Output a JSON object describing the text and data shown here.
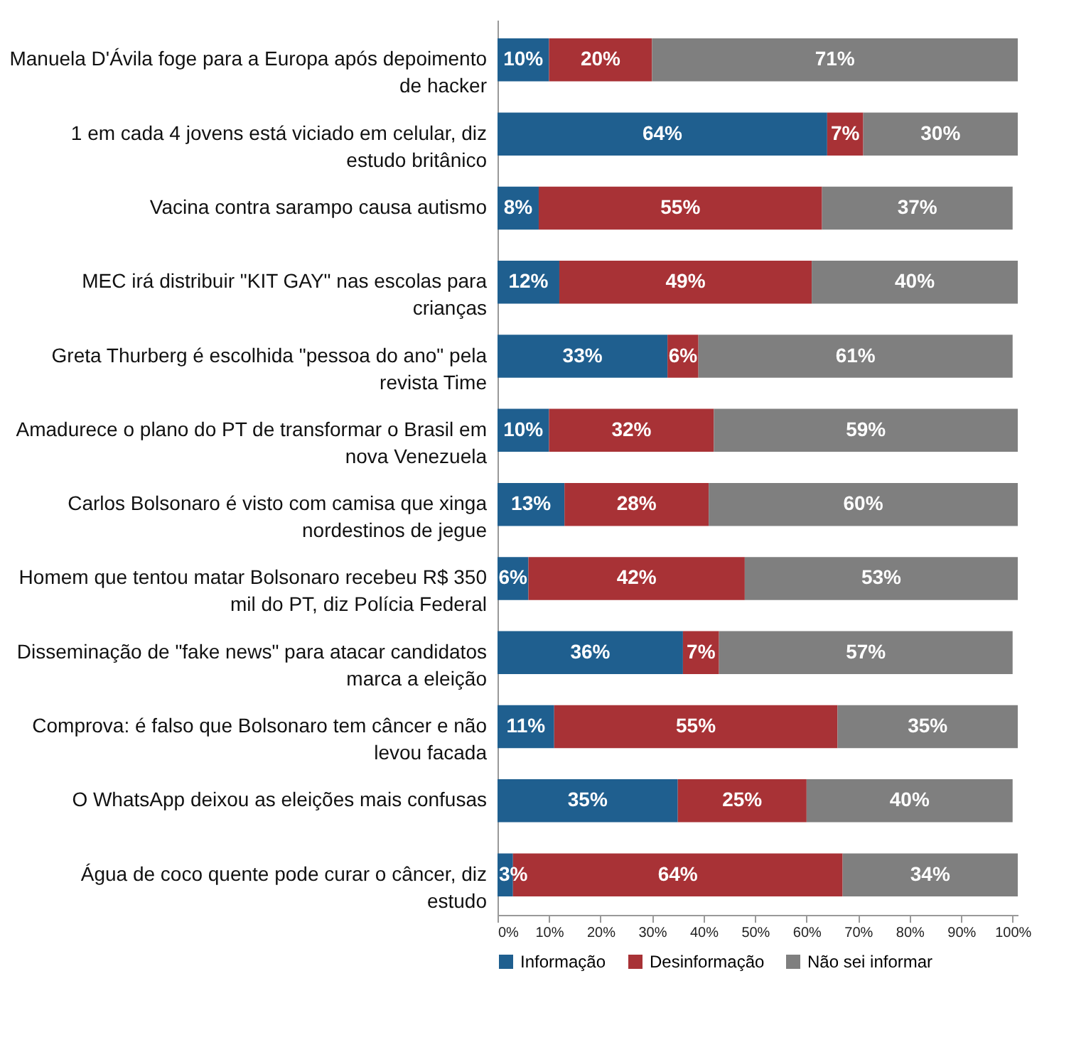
{
  "chart_data": {
    "type": "bar",
    "orientation": "horizontal",
    "stacked": true,
    "categories": [
      "Manuela D'Ávila foge para a Europa após depoimento de hacker",
      "1 em cada 4 jovens está viciado em celular, diz estudo britânico",
      "Vacina contra sarampo causa autismo",
      "MEC irá distribuir \"KIT GAY\" nas escolas para crianças",
      "Greta Thurberg é escolhida \"pessoa do ano\" pela revista Time",
      "Amadurece o plano do PT de transformar o Brasil em nova Venezuela",
      "Carlos Bolsonaro é visto com camisa que xinga nordestinos de jegue",
      "Homem que tentou matar Bolsonaro recebeu R$ 350 mil do PT, diz Polícia Federal",
      "Disseminação de \"fake news\" para atacar candidatos marca a eleição",
      "Comprova: é falso que Bolsonaro tem câncer e não levou facada",
      "O WhatsApp deixou as eleições mais confusas",
      "Água de coco quente pode curar o câncer, diz estudo"
    ],
    "series": [
      {
        "name": "Informação",
        "color": "#1f5f8f",
        "values": [
          10,
          64,
          8,
          12,
          33,
          10,
          13,
          6,
          36,
          11,
          35,
          3
        ],
        "value_labels": [
          "10%",
          "64%",
          "8%",
          "12%",
          "33%",
          "10%",
          "13%",
          "6%",
          "36%",
          "11%",
          "35%",
          "3%"
        ]
      },
      {
        "name": "Desinformação",
        "color": "#a83236",
        "values": [
          20,
          7,
          55,
          49,
          6,
          32,
          28,
          42,
          7,
          55,
          25,
          64
        ],
        "value_labels": [
          "20%",
          "7%",
          "55%",
          "49%",
          "6%",
          "32%",
          "28%",
          "42%",
          "7%",
          "55%",
          "25%",
          "64%"
        ]
      },
      {
        "name": "Não sei informar",
        "color": "#7f7f7f",
        "values": [
          71,
          30,
          37,
          40,
          61,
          59,
          60,
          53,
          57,
          35,
          40,
          34
        ],
        "value_labels": [
          "71%",
          "30%",
          "37%",
          "40%",
          "61%",
          "59%",
          "60%",
          "53%",
          "57%",
          "35%",
          "40%",
          "34%"
        ]
      }
    ],
    "xlim": [
      0,
      101
    ],
    "xticks": [
      {
        "value": 0,
        "label": "0%"
      },
      {
        "value": 10,
        "label": "10%"
      },
      {
        "value": 20,
        "label": "20%"
      },
      {
        "value": 30,
        "label": "30%"
      },
      {
        "value": 40,
        "label": "40%"
      },
      {
        "value": 50,
        "label": "50%"
      },
      {
        "value": 60,
        "label": "60%"
      },
      {
        "value": 70,
        "label": "70%"
      },
      {
        "value": 80,
        "label": "80%"
      },
      {
        "value": 90,
        "label": "90%"
      },
      {
        "value": 100,
        "label": "100%"
      }
    ],
    "grid": false,
    "legend": "bottom"
  }
}
